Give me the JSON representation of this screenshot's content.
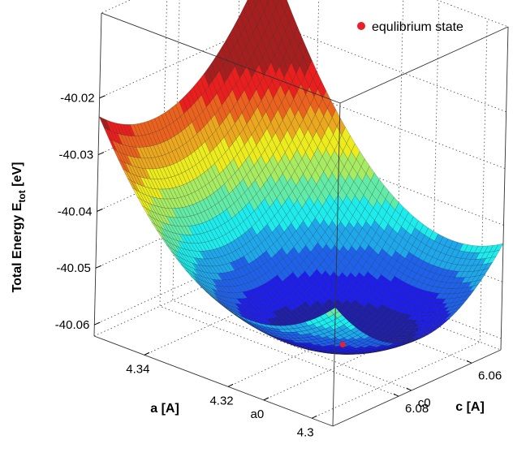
{
  "chart_data": {
    "type": "surface3d",
    "title": "",
    "zlabel_main": "Total Energy E",
    "zlabel_sub": "tot",
    "zlabel_unit": " [eV]",
    "xlabel": "a [A]",
    "ylabel": "c [A]",
    "zlim": [
      -40.062,
      -40.005
    ],
    "x_ticks": [
      "4.34",
      "4.32",
      "a0",
      "4.3"
    ],
    "y_ticks": [
      "6.06",
      "6.08",
      "c0"
    ],
    "z_ticks": [
      "-40.02",
      "-40.03",
      "-40.04",
      "-40.05",
      "-40.06"
    ],
    "surface": {
      "a_range": [
        4.295,
        4.352
      ],
      "c_range": [
        6.052,
        6.098
      ],
      "minimum": {
        "a": 4.3115,
        "c": 6.0765,
        "E": -40.0585
      },
      "values_at": [
        {
          "a": 4.352,
          "c": 6.098,
          "E": -40.028
        },
        {
          "a": 4.352,
          "c": 6.052,
          "E": -40.002
        },
        {
          "a": 4.295,
          "c": 6.052,
          "E": -40.033
        },
        {
          "a": 4.295,
          "c": 6.098,
          "E": -40.057
        }
      ]
    },
    "series": [
      {
        "name": "equlibrium state",
        "points": [
          {
            "a": 4.3115,
            "c": 6.0765,
            "E": -40.0585
          }
        ],
        "color": "#e8202a"
      }
    ],
    "legend_position": "top-right",
    "grid": true,
    "colormap": "jet"
  }
}
